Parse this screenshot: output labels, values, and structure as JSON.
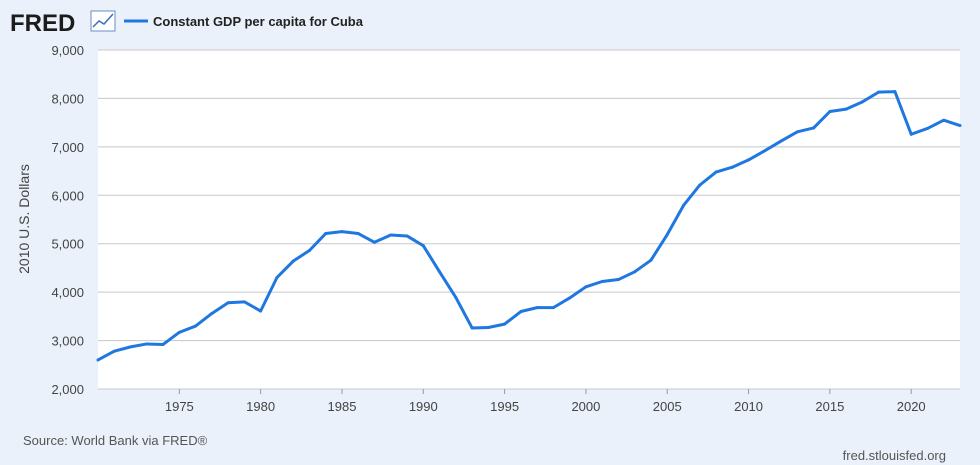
{
  "header": {
    "logo_text": "FRED",
    "legend_label": "Constant GDP per capita for Cuba"
  },
  "footer": {
    "source": "Source: World Bank via FRED®",
    "site": "fred.stlouisfed.org"
  },
  "colors": {
    "series": "#1f77e0",
    "background": "#eaf1fa",
    "plot_background": "#ffffff",
    "grid": "#c8c8c8"
  },
  "chart_data": {
    "type": "line",
    "title": "",
    "xlabel": "",
    "ylabel": "2010 U.S. Dollars",
    "xlim": [
      1970,
      2023
    ],
    "ylim": [
      2000,
      9000
    ],
    "x_ticks": [
      1975,
      1980,
      1985,
      1990,
      1995,
      2000,
      2005,
      2010,
      2015,
      2020
    ],
    "y_ticks": [
      2000,
      3000,
      4000,
      5000,
      6000,
      7000,
      8000,
      9000
    ],
    "y_tick_labels": [
      "2,000",
      "3,000",
      "4,000",
      "5,000",
      "6,000",
      "7,000",
      "8,000",
      "9,000"
    ],
    "grid": "horizontal",
    "legend": "top-left",
    "series": [
      {
        "name": "Constant GDP per capita for Cuba",
        "x": [
          1970,
          1971,
          1972,
          1973,
          1974,
          1975,
          1976,
          1977,
          1978,
          1979,
          1980,
          1981,
          1982,
          1983,
          1984,
          1985,
          1986,
          1987,
          1988,
          1989,
          1990,
          1991,
          1992,
          1993,
          1994,
          1995,
          1996,
          1997,
          1998,
          1999,
          2000,
          2001,
          2002,
          2003,
          2004,
          2005,
          2006,
          2007,
          2008,
          2009,
          2010,
          2011,
          2012,
          2013,
          2014,
          2015,
          2016,
          2017,
          2018,
          2019,
          2020,
          2021,
          2022,
          2023
        ],
        "values": [
          2600,
          2780,
          2870,
          2930,
          2920,
          3170,
          3300,
          3560,
          3780,
          3800,
          3610,
          4300,
          4640,
          4860,
          5210,
          5250,
          5210,
          5030,
          5180,
          5160,
          4960,
          4420,
          3890,
          3260,
          3270,
          3340,
          3600,
          3680,
          3680,
          3880,
          4110,
          4220,
          4260,
          4420,
          4660,
          5190,
          5790,
          6210,
          6480,
          6580,
          6730,
          6920,
          7120,
          7310,
          7390,
          7730,
          7780,
          7930,
          8130,
          8140,
          7260,
          7380,
          7550,
          7440
        ]
      }
    ]
  }
}
